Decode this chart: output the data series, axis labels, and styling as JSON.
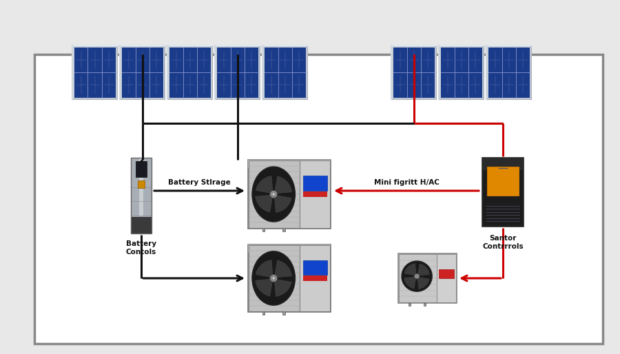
{
  "bg_color": "#e8e8e8",
  "box_facecolor": "#ffffff",
  "box_edgecolor": "#888888",
  "black_line_color": "#111111",
  "red_line_color": "#cc0000",
  "label_battery_controls": "Battery\nContols",
  "label_battery_storage": "Battery Stlrage",
  "label_hvac": "Mini figritt H/AC",
  "label_sanitor": "Santor\nContrrrols",
  "arrow_lw": 2.2,
  "panel_cell_color": "#1a3a8a",
  "panel_frame_color": "#c0c8d0",
  "panel_grid_color": "#4466bb"
}
